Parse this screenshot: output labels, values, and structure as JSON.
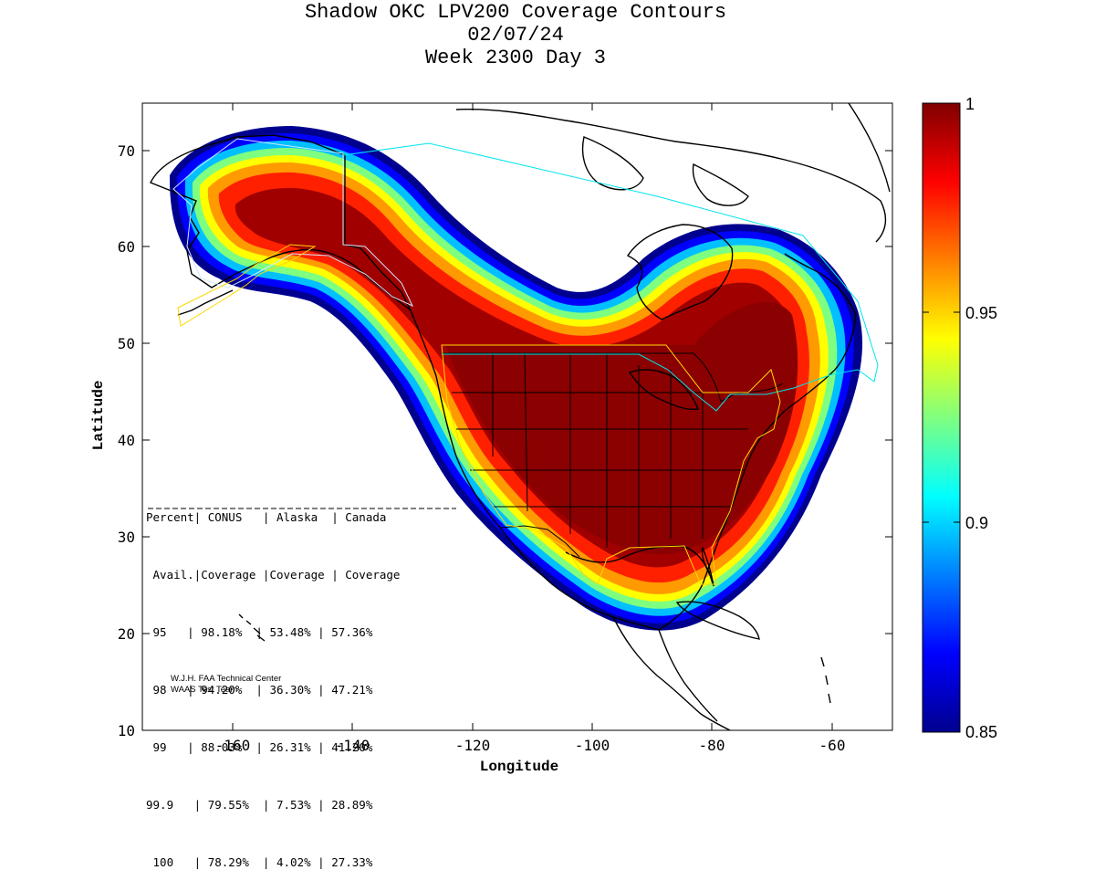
{
  "title": {
    "line1": "Shadow OKC LPV200 Coverage Contours",
    "line2": "02/07/24",
    "line3": "Week 2300 Day 3"
  },
  "axes": {
    "xlabel": "Longitude",
    "ylabel": "Latitude",
    "x_ticks": [
      "-160",
      "-140",
      "-120",
      "-100",
      "-80",
      "-60"
    ],
    "y_ticks": [
      "10",
      "20",
      "30",
      "40",
      "50",
      "60",
      "70"
    ]
  },
  "colorbar": {
    "ticks": [
      "1",
      "0.95",
      "0.9",
      "0.85"
    ],
    "range": [
      0.85,
      1.0
    ],
    "colormap": "jet"
  },
  "table": {
    "header1": "Percent| CONUS   | Alaska  | Canada",
    "header2": " Avail.|Coverage |Coverage | Coverage",
    "rows": [
      " 95   | 98.18%  | 53.48% | 57.36%",
      " 98   | 94.20%  | 36.30% | 47.21%",
      " 99   | 88.03%  | 26.31% | 41.20%",
      "99.9   | 79.55%  | 7.53% | 28.89%",
      " 100   | 78.29%  | 4.02% | 27.33%"
    ]
  },
  "credit": {
    "line1": "W.J.H. FAA Technical Center",
    "line2": "WAAS Test Team"
  },
  "chart_data": {
    "type": "heatmap",
    "x_range": [
      -175,
      -50
    ],
    "y_range": [
      10,
      75
    ],
    "color_range": [
      0.85,
      1.0
    ],
    "columns": [
      "Percent Avail.",
      "CONUS Coverage",
      "Alaska Coverage",
      "Canada Coverage"
    ],
    "rows": [
      [
        "95",
        "98.18%",
        "53.48%",
        "57.36%"
      ],
      [
        "98",
        "94.20%",
        "36.30%",
        "47.21%"
      ],
      [
        "99",
        "88.03%",
        "26.31%",
        "41.20%"
      ],
      [
        "99.9",
        "79.55%",
        "7.53%",
        "28.89%"
      ],
      [
        "100",
        "78.29%",
        "4.02%",
        "27.33%"
      ]
    ]
  }
}
